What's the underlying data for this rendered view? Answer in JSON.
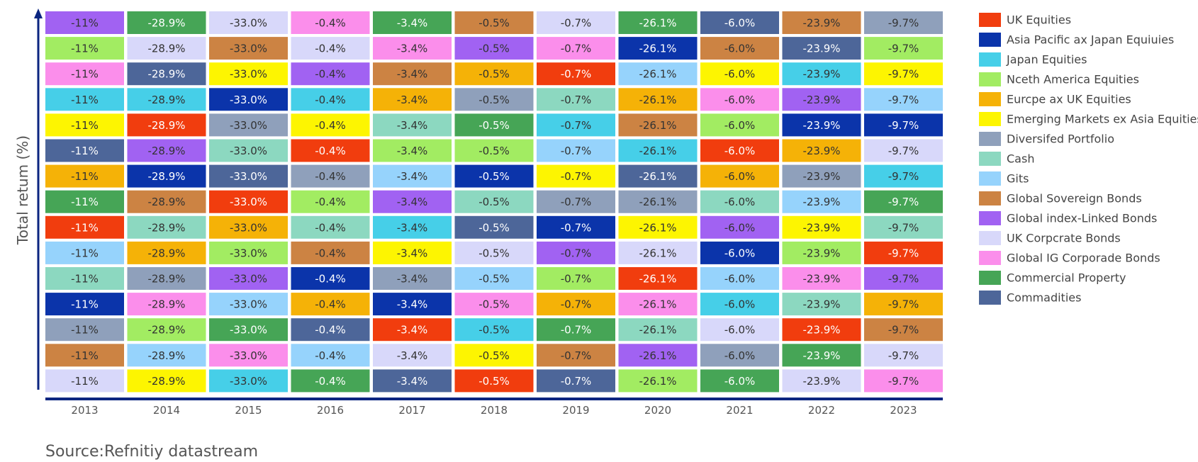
{
  "chart_data": {
    "type": "table",
    "ylabel": "Total retum (%)",
    "source": "Source:Refnitiy datastream",
    "axis_color": "#0b2580",
    "categories": [
      "2013",
      "2014",
      "2015",
      "2016",
      "2017",
      "2018",
      "2019",
      "2020",
      "2021",
      "2022",
      "2023"
    ],
    "year_values": [
      "-11%",
      "-28.9%",
      "-33.0%",
      "-0.4%",
      "-3.4%",
      "-0.5%",
      "-0.7%",
      "-26.1%",
      "-6.0%",
      "-23.9%",
      "-9.7%"
    ],
    "series": [
      {
        "name": "UK Equities",
        "color": "#f13d0e"
      },
      {
        "name": "Asia Pacific ax Japan Equiuies",
        "color": "#0b34aa"
      },
      {
        "name": "Japan Equities",
        "color": "#46cfe8"
      },
      {
        "name": "Nceth America Equities",
        "color": "#a2ec62"
      },
      {
        "name": "Eurcpe ax UK Equities",
        "color": "#f5b207"
      },
      {
        "name": "Emerging Markets ex Asia Equities",
        "color": "#fdf501"
      },
      {
        "name": "Diversifed Portfolio",
        "color": "#8fa0bb"
      },
      {
        "name": "Cash",
        "color": "#8cd8c0"
      },
      {
        "name": "Gits",
        "color": "#96d3fc"
      },
      {
        "name": "Global Sovereign Bonds",
        "color": "#cc8343"
      },
      {
        "name": "Global index-Linked Bonds",
        "color": "#a162f2"
      },
      {
        "name": "UK Corpcrate Bonds",
        "color": "#d8d8fa"
      },
      {
        "name": "Global IG Corporade Bonds",
        "color": "#fb8eeb"
      },
      {
        "name": "Commercial Property",
        "color": "#46a556"
      },
      {
        "name": "Commadities",
        "color": "#4d6699"
      }
    ],
    "rankings": [
      [
        "Global index-Linked Bonds",
        "Commercial Property",
        "UK Corpcrate Bonds",
        "Global IG Corporade Bonds",
        "Commercial Property",
        "Global Sovereign Bonds",
        "UK Corpcrate Bonds",
        "Commercial Property",
        "Commadities",
        "Global Sovereign Bonds",
        "Diversifed Portfolio"
      ],
      [
        "Nceth America Equities",
        "UK Corpcrate Bonds",
        "Global Sovereign Bonds",
        "UK Corpcrate Bonds",
        "Global IG Corporade Bonds",
        "Global index-Linked Bonds",
        "Global IG Corporade Bonds",
        "Asia Pacific ax Japan Equiuies",
        "Global Sovereign Bonds",
        "Commadities",
        "Nceth America Equities"
      ],
      [
        "Global IG Corporade Bonds",
        "Commadities",
        "Emerging Markets ex Asia Equities",
        "Global index-Linked Bonds",
        "Global Sovereign Bonds",
        "Eurcpe ax UK Equities",
        "UK Equities",
        "Gits",
        "Emerging Markets ex Asia Equities",
        "Japan Equities",
        "Emerging Markets ex Asia Equities"
      ],
      [
        "Japan Equities",
        "Japan Equities",
        "Asia Pacific ax Japan Equiuies",
        "Japan Equities",
        "Eurcpe ax UK Equities",
        "Diversifed Portfolio",
        "Cash",
        "Eurcpe ax UK Equities",
        "Global IG Corporade Bonds",
        "Global index-Linked Bonds",
        "Gits"
      ],
      [
        "Emerging Markets ex Asia Equities",
        "UK Equities",
        "Diversifed Portfolio",
        "Emerging Markets ex Asia Equities",
        "Cash",
        "Commercial Property",
        "Japan Equities",
        "Global Sovereign Bonds",
        "Nceth America Equities",
        "Asia Pacific ax Japan Equiuies",
        "Asia Pacific ax Japan Equiuies"
      ],
      [
        "Commadities",
        "Global index-Linked Bonds",
        "Cash",
        "UK Equities",
        "Nceth America Equities",
        "Nceth America Equities",
        "Gits",
        "Japan Equities",
        "UK Equities",
        "Eurcpe ax UK Equities",
        "UK Corpcrate Bonds"
      ],
      [
        "Eurcpe ax UK Equities",
        "Asia Pacific ax Japan Equiuies",
        "Commadities",
        "Diversifed Portfolio",
        "Gits",
        "Asia Pacific ax Japan Equiuies",
        "Emerging Markets ex Asia Equities",
        "Commadities",
        "Eurcpe ax UK Equities",
        "Diversifed Portfolio",
        "Japan Equities"
      ],
      [
        "Commercial Property",
        "Global Sovereign Bonds",
        "UK Equities",
        "Nceth America Equities",
        "Global index-Linked Bonds",
        "Cash",
        "Diversifed Portfolio",
        "Diversifed Portfolio",
        "Cash",
        "Gits",
        "Commercial Property"
      ],
      [
        "UK Equities",
        "Cash",
        "Eurcpe ax UK Equities",
        "Cash",
        "Japan Equities",
        "Commadities",
        "Asia Pacific ax Japan Equiuies",
        "Emerging Markets ex Asia Equities",
        "Global index-Linked Bonds",
        "Emerging Markets ex Asia Equities",
        "Cash"
      ],
      [
        "Gits",
        "Eurcpe ax UK Equities",
        "Nceth America Equities",
        "Global Sovereign Bonds",
        "Emerging Markets ex Asia Equities",
        "UK Corpcrate Bonds",
        "Global index-Linked Bonds",
        "UK Corpcrate Bonds",
        "Asia Pacific ax Japan Equiuies",
        "Nceth America Equities",
        "UK Equities"
      ],
      [
        "Cash",
        "Diversifed Portfolio",
        "Global index-Linked Bonds",
        "Asia Pacific ax Japan Equiuies",
        "Diversifed Portfolio",
        "Gits",
        "Nceth America Equities",
        "UK Equities",
        "Gits",
        "Global IG Corporade Bonds",
        "Global index-Linked Bonds"
      ],
      [
        "Asia Pacific ax Japan Equiuies",
        "Global IG Corporade Bonds",
        "Gits",
        "Eurcpe ax UK Equities",
        "Asia Pacific ax Japan Equiuies",
        "Global IG Corporade Bonds",
        "Eurcpe ax UK Equities",
        "Global IG Corporade Bonds",
        "Japan Equities",
        "Cash",
        "Eurcpe ax UK Equities"
      ],
      [
        "Diversifed Portfolio",
        "Nceth America Equities",
        "Commercial Property",
        "Commadities",
        "UK Equities",
        "Japan Equities",
        "Commercial Property",
        "Cash",
        "UK Corpcrate Bonds",
        "UK Equities",
        "Global Sovereign Bonds"
      ],
      [
        "Global Sovereign Bonds",
        "Gits",
        "Global IG Corporade Bonds",
        "Gits",
        "UK Corpcrate Bonds",
        "Emerging Markets ex Asia Equities",
        "Global Sovereign Bonds",
        "Global index-Linked Bonds",
        "Diversifed Portfolio",
        "Commercial Property",
        "UK Corpcrate Bonds"
      ],
      [
        "UK Corpcrate Bonds",
        "Emerging Markets ex Asia Equities",
        "Japan Equities",
        "Commercial Property",
        "Commadities",
        "UK Equities",
        "Commadities",
        "Nceth America Equities",
        "Commercial Property",
        "UK Corpcrate Bonds",
        "Global IG Corporade Bonds"
      ]
    ]
  }
}
